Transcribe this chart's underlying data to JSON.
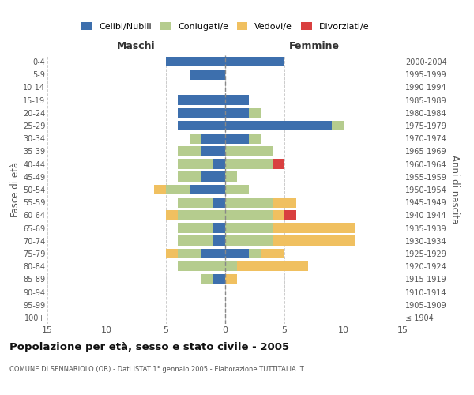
{
  "age_groups": [
    "100+",
    "95-99",
    "90-94",
    "85-89",
    "80-84",
    "75-79",
    "70-74",
    "65-69",
    "60-64",
    "55-59",
    "50-54",
    "45-49",
    "40-44",
    "35-39",
    "30-34",
    "25-29",
    "20-24",
    "15-19",
    "10-14",
    "5-9",
    "0-4"
  ],
  "birth_years": [
    "≤ 1904",
    "1905-1909",
    "1910-1914",
    "1915-1919",
    "1920-1924",
    "1925-1929",
    "1930-1934",
    "1935-1939",
    "1940-1944",
    "1945-1949",
    "1950-1954",
    "1955-1959",
    "1960-1964",
    "1965-1969",
    "1970-1974",
    "1975-1979",
    "1980-1984",
    "1985-1989",
    "1990-1994",
    "1995-1999",
    "2000-2004"
  ],
  "colors": {
    "celibi": "#3d6fad",
    "coniugati": "#b5cc8e",
    "vedovi": "#f0c060",
    "divorziati": "#d94040"
  },
  "maschi": {
    "celibi": [
      0,
      0,
      0,
      1,
      0,
      2,
      1,
      1,
      0,
      1,
      3,
      2,
      1,
      2,
      2,
      4,
      4,
      4,
      0,
      3,
      5
    ],
    "coniugati": [
      0,
      0,
      0,
      1,
      4,
      2,
      3,
      3,
      4,
      3,
      2,
      2,
      3,
      2,
      1,
      0,
      0,
      0,
      0,
      0,
      0
    ],
    "vedovi": [
      0,
      0,
      0,
      0,
      0,
      1,
      0,
      0,
      1,
      0,
      1,
      0,
      0,
      0,
      0,
      0,
      0,
      0,
      0,
      0,
      0
    ],
    "divorziati": [
      0,
      0,
      0,
      0,
      0,
      0,
      0,
      0,
      0,
      0,
      0,
      0,
      0,
      0,
      0,
      0,
      0,
      0,
      0,
      0,
      0
    ]
  },
  "femmine": {
    "celibi": [
      0,
      0,
      0,
      0,
      0,
      2,
      0,
      0,
      0,
      0,
      0,
      0,
      0,
      0,
      2,
      9,
      2,
      2,
      0,
      0,
      5
    ],
    "coniugati": [
      0,
      0,
      0,
      0,
      1,
      1,
      4,
      4,
      4,
      4,
      2,
      1,
      4,
      4,
      1,
      1,
      1,
      0,
      0,
      0,
      0
    ],
    "vedovi": [
      0,
      0,
      0,
      1,
      6,
      2,
      7,
      7,
      1,
      2,
      0,
      0,
      0,
      0,
      0,
      0,
      0,
      0,
      0,
      0,
      0
    ],
    "divorziati": [
      0,
      0,
      0,
      0,
      0,
      0,
      0,
      0,
      1,
      0,
      0,
      0,
      1,
      0,
      0,
      0,
      0,
      0,
      0,
      0,
      0
    ]
  },
  "xlim": 15,
  "title": "Popolazione per età, sesso e stato civile - 2005",
  "subtitle": "COMUNE DI SENNARIOLO (OR) - Dati ISTAT 1° gennaio 2005 - Elaborazione TUTTITALIA.IT",
  "ylabel_left": "Fasce di età",
  "ylabel_right": "Anni di nascita",
  "xlabel_left": "Maschi",
  "xlabel_right": "Femmine",
  "legend_labels": [
    "Celibi/Nubili",
    "Coniugati/e",
    "Vedovi/e",
    "Divorziati/e"
  ],
  "bg_color": "#ffffff",
  "grid_color": "#cccccc"
}
